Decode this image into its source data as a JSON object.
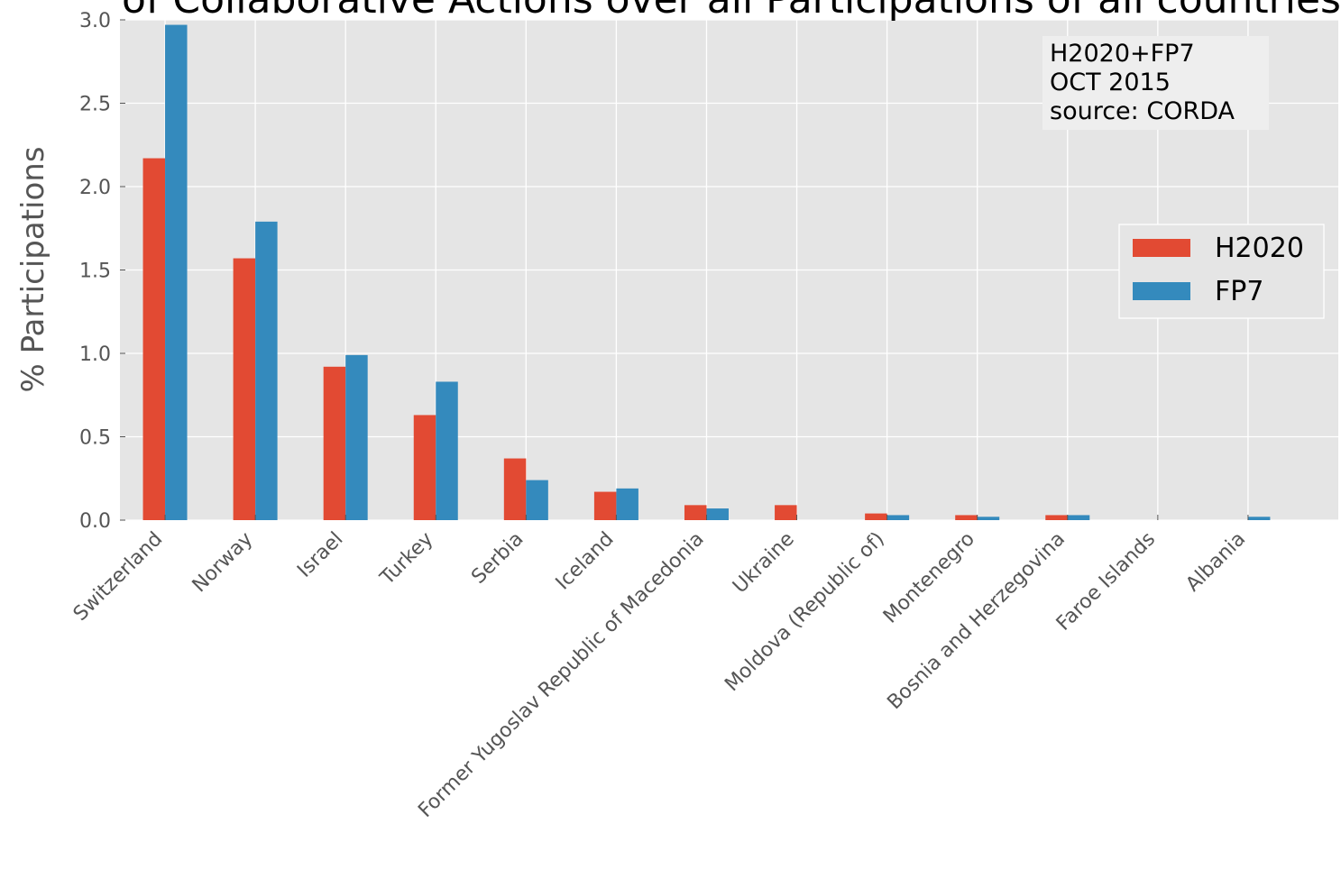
{
  "chart_data": {
    "type": "bar",
    "title": "of Collaborative Actions over all Participations of all countries",
    "xlabel": "",
    "ylabel": "% Participations",
    "ylim": [
      0,
      3.0
    ],
    "yticks": [
      "0.0",
      "0.5",
      "1.0",
      "1.5",
      "2.0",
      "2.5",
      "3.0"
    ],
    "categories": [
      "Switzerland",
      "Norway",
      "Israel",
      "Turkey",
      "Serbia",
      "Iceland",
      "Former Yugoslav Republic of Macedonia",
      "Ukraine",
      "Moldova (Republic of)",
      "Montenegro",
      "Bosnia and Herzegovina",
      "Faroe Islands",
      "Albania"
    ],
    "series": [
      {
        "name": "H2020",
        "color": "#e24a33",
        "values": [
          2.17,
          1.57,
          0.92,
          0.63,
          0.37,
          0.17,
          0.09,
          0.09,
          0.04,
          0.03,
          0.03,
          0.0,
          0.0
        ]
      },
      {
        "name": "FP7",
        "color": "#348abd",
        "values": [
          2.97,
          1.79,
          0.99,
          0.83,
          0.24,
          0.19,
          0.07,
          0.0,
          0.03,
          0.02,
          0.03,
          0.0,
          0.02
        ]
      }
    ],
    "grid": true,
    "legend_position": "center-right",
    "annotation": [
      "H2020+FP7",
      "OCT 2015",
      "source: CORDA"
    ],
    "colors": {
      "background": "#e5e5e5",
      "grid": "#ffffff",
      "annotation_box": "#eeeeee"
    }
  }
}
